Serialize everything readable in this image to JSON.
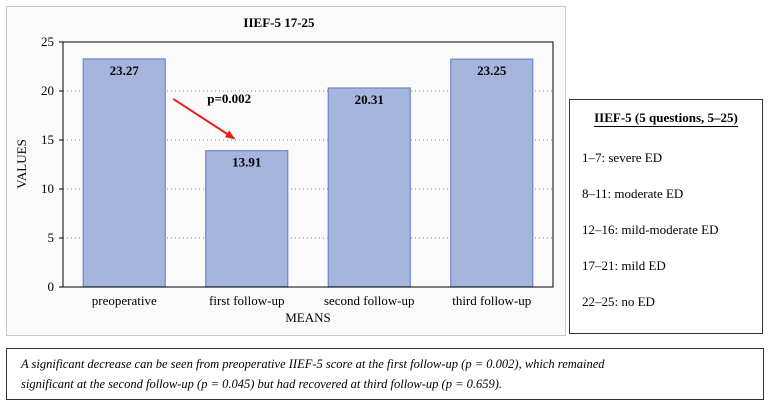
{
  "chart_data": {
    "type": "bar",
    "title": "IIEF-5 17-25",
    "xlabel": "MEANS",
    "ylabel": "VALUES",
    "categories": [
      "preoperative",
      "first follow-up",
      "second follow-up",
      "third follow-up"
    ],
    "values": [
      23.27,
      13.91,
      20.31,
      23.25
    ],
    "value_labels": [
      "23.27",
      "13.91",
      "20.31",
      "23.25"
    ],
    "ylim": [
      0,
      25
    ],
    "yticks": [
      0,
      5,
      10,
      15,
      20,
      25
    ],
    "grid": "horizontal dotted",
    "bar_color": "#a5b5dd",
    "bar_edge_color": "#6e86c4",
    "annotation": {
      "text": "p=0.002",
      "arrow_color": "#e0201c",
      "from_category": "preoperative",
      "to_category": "first follow-up"
    }
  },
  "legend": {
    "title": "IIEF-5 (5 questions, 5–25)",
    "items": [
      "1–7: severe ED",
      "8–11: moderate ED",
      "12–16: mild-moderate ED",
      "17–21: mild ED",
      "22–25: no ED"
    ]
  },
  "caption": {
    "line1": "A significant decrease can be seen from preoperative IIEF-5 score at the first follow-up (p = 0.002), which remained",
    "line2": "significant at the second follow-up (p = 0.045) but had recovered at third follow-up (p = 0.659)."
  }
}
